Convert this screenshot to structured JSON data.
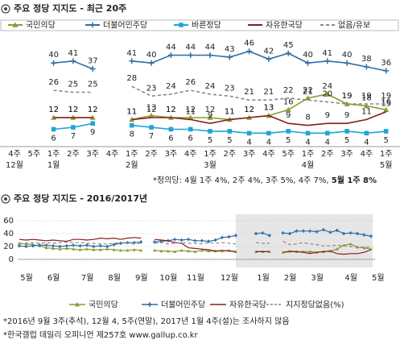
{
  "chart_data": [
    {
      "type": "line",
      "title": "주요 정당 지지도 - 최근 20주",
      "categories": [
        "4주",
        "5주",
        "1주",
        "2주",
        "3주",
        "4주",
        "1주",
        "2주",
        "3주",
        "4주",
        "1주",
        "2주",
        "3주",
        "4주",
        "5주",
        "1주",
        "2주",
        "3주",
        "4주",
        "1주"
      ],
      "month_labels": [
        "12월",
        null,
        "1월",
        null,
        null,
        null,
        "2월",
        null,
        null,
        null,
        "3월",
        null,
        null,
        null,
        null,
        "4월",
        null,
        null,
        null,
        "5월"
      ],
      "ylim": [
        0,
        50
      ],
      "series": [
        {
          "name": "국민의당",
          "color": "#8a9c32",
          "marker": "triangle",
          "label_position": "above",
          "values": [
            null,
            null,
            12,
            12,
            12,
            null,
            11,
            13,
            12,
            12,
            12,
            11,
            12,
            13,
            16,
            22,
            24,
            19,
            18,
            16
          ]
        },
        {
          "name": "더불어민주당",
          "color": "#2e6ea6",
          "marker": "plus",
          "label_position": "above",
          "values": [
            null,
            null,
            40,
            41,
            37,
            null,
            41,
            40,
            44,
            44,
            44,
            43,
            46,
            42,
            45,
            40,
            41,
            40,
            38,
            36
          ]
        },
        {
          "name": "바른정당",
          "color": "#1fa4d8",
          "marker": "square",
          "label_position": "below",
          "values": [
            null,
            null,
            6,
            7,
            9,
            null,
            8,
            7,
            6,
            6,
            5,
            5,
            4,
            4,
            5,
            4,
            4,
            5,
            4,
            5
          ]
        },
        {
          "name": "자유한국당",
          "color": "#8b1c1c",
          "marker": "none",
          "label_position": "above",
          "values": [
            null,
            null,
            12,
            12,
            12,
            null,
            11,
            12,
            12,
            11,
            9,
            11,
            12,
            13,
            9,
            8,
            9,
            9,
            11,
            15
          ]
        },
        {
          "name": "없음/유보",
          "color": "#888888",
          "marker": "none",
          "dash": true,
          "label_position": "above",
          "values": [
            null,
            null,
            26,
            25,
            25,
            null,
            28,
            23,
            24,
            26,
            24,
            23,
            21,
            21,
            22,
            21,
            20,
            19,
            19,
            19
          ]
        }
      ],
      "note": "*정의당: 4월 1주 4%, 2주 4%, 3주 5%, 4주 7%,",
      "note_bold": "5월 1주 8%"
    },
    {
      "type": "line",
      "title": "주요 정당 지지도 - 2016/2017년",
      "categories": [
        "5월",
        null,
        null,
        null,
        "6월",
        null,
        null,
        null,
        null,
        "7월",
        null,
        null,
        null,
        "8월",
        null,
        null,
        null,
        "9월",
        null,
        null,
        null,
        "10월",
        null,
        null,
        null,
        "11월",
        null,
        null,
        null,
        null,
        "12월",
        null,
        null,
        null,
        null,
        "1월",
        null,
        null,
        null,
        "2월",
        null,
        null,
        null,
        "3월",
        null,
        null,
        null,
        null,
        "4월",
        null,
        null,
        null,
        "5월"
      ],
      "ylim": [
        0,
        60
      ],
      "yticks": [
        0,
        20,
        40,
        60
      ],
      "grid": true,
      "series": [
        {
          "name": "국민의당",
          "color": "#8a9c32",
          "marker": "triangle",
          "values": [
            25,
            24,
            23,
            21,
            18,
            17,
            16,
            17,
            16,
            15,
            16,
            15,
            15,
            16,
            15,
            14,
            14,
            15,
            14,
            null,
            14,
            13,
            13,
            12,
            14,
            13,
            12,
            14,
            13,
            13,
            13,
            14,
            12,
            null,
            null,
            12,
            12,
            12,
            null,
            11,
            13,
            12,
            12,
            12,
            11,
            12,
            13,
            16,
            22,
            24,
            19,
            18,
            16
          ]
        },
        {
          "name": "더불어민주당",
          "color": "#2e6ea6",
          "marker": "plus",
          "values": [
            21,
            20,
            21,
            22,
            22,
            21,
            20,
            21,
            22,
            21,
            22,
            20,
            21,
            20,
            23,
            25,
            26,
            26,
            27,
            null,
            27,
            28,
            29,
            31,
            30,
            31,
            29,
            29,
            28,
            30,
            34,
            35,
            37,
            null,
            null,
            40,
            41,
            37,
            null,
            41,
            40,
            44,
            44,
            44,
            43,
            46,
            42,
            45,
            40,
            41,
            40,
            38,
            36
          ]
        },
        {
          "name": "자유한국당",
          "color": "#8b1c1c",
          "marker": "none",
          "values": [
            31,
            30,
            31,
            30,
            29,
            30,
            29,
            28,
            31,
            31,
            30,
            31,
            33,
            32,
            33,
            31,
            33,
            34,
            33,
            null,
            31,
            30,
            29,
            26,
            25,
            18,
            17,
            16,
            15,
            13,
            14,
            13,
            12,
            null,
            null,
            12,
            12,
            12,
            null,
            11,
            12,
            12,
            11,
            9,
            11,
            12,
            13,
            9,
            8,
            9,
            9,
            11,
            15
          ]
        },
        {
          "name": "지지정당없음(%)",
          "color": "#888888",
          "marker": "none",
          "dash": true,
          "values": [
            24,
            25,
            26,
            25,
            26,
            25,
            26,
            27,
            26,
            26,
            25,
            25,
            24,
            24,
            25,
            26,
            25,
            24,
            25,
            null,
            25,
            26,
            24,
            25,
            26,
            25,
            25,
            24,
            26,
            25,
            26,
            25,
            24,
            null,
            null,
            26,
            25,
            25,
            null,
            28,
            23,
            24,
            26,
            24,
            23,
            21,
            21,
            22,
            21,
            20,
            19,
            19,
            19
          ]
        }
      ],
      "footnotes": [
        "*2016년 9월 3주(추석), 12월 4, 5주(연말), 2017년 1월 4주(설)는 조사하지 않음",
        "*한국갤럽 데일리 오피니언 제257호 www.gallup.co.kr"
      ]
    }
  ]
}
